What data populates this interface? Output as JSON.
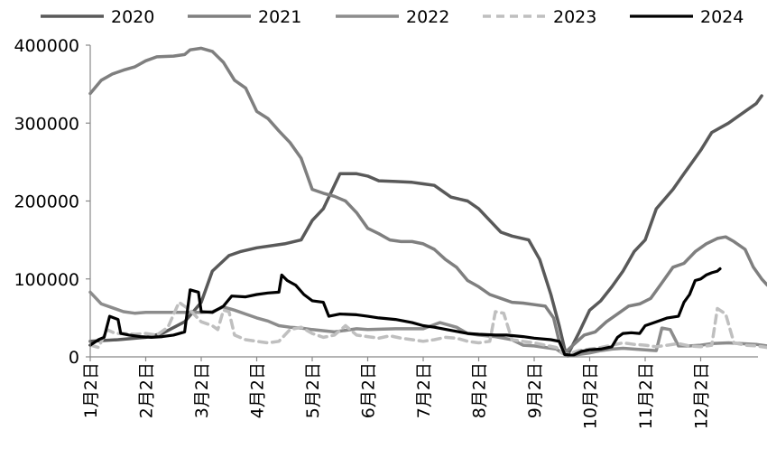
{
  "chart_data": {
    "type": "line",
    "title": "",
    "xlabel": "",
    "ylabel": "",
    "ylim": [
      0,
      400000
    ],
    "yticks": [
      "0",
      "100000",
      "200000",
      "300000",
      "400000"
    ],
    "x_ticks": [
      "1月2日",
      "2月2日",
      "3月2日",
      "4月2日",
      "5月2日",
      "6月2日",
      "7月2日",
      "8月2日",
      "9月2日",
      "10月2日",
      "11月2日",
      "12月2日"
    ],
    "x_range": [
      1,
      13.2
    ],
    "grid": false,
    "legend_position": "top",
    "series": [
      {
        "name": "2020",
        "color": "#595959",
        "dash": "solid",
        "points": [
          [
            1,
            20000
          ],
          [
            1.5,
            22000
          ],
          [
            2,
            25000
          ],
          [
            2.3,
            30000
          ],
          [
            2.7,
            45000
          ],
          [
            3,
            70000
          ],
          [
            3.2,
            110000
          ],
          [
            3.5,
            130000
          ],
          [
            3.7,
            135000
          ],
          [
            4,
            140000
          ],
          [
            4.5,
            145000
          ],
          [
            4.8,
            150000
          ],
          [
            5,
            175000
          ],
          [
            5.2,
            190000
          ],
          [
            5.4,
            220000
          ],
          [
            5.5,
            235000
          ],
          [
            5.8,
            235000
          ],
          [
            6,
            232000
          ],
          [
            6.2,
            226000
          ],
          [
            6.5,
            225000
          ],
          [
            6.8,
            224000
          ],
          [
            7,
            222000
          ],
          [
            7.2,
            220000
          ],
          [
            7.5,
            205000
          ],
          [
            7.8,
            200000
          ],
          [
            8,
            190000
          ],
          [
            8.2,
            175000
          ],
          [
            8.4,
            160000
          ],
          [
            8.6,
            155000
          ],
          [
            8.9,
            150000
          ],
          [
            9.1,
            125000
          ],
          [
            9.3,
            80000
          ],
          [
            9.45,
            40000
          ],
          [
            9.55,
            10000
          ],
          [
            9.6,
            2000
          ],
          [
            9.8,
            30000
          ],
          [
            10,
            60000
          ],
          [
            10.2,
            72000
          ],
          [
            10.4,
            90000
          ],
          [
            10.6,
            110000
          ],
          [
            10.8,
            135000
          ],
          [
            11,
            150000
          ],
          [
            11.2,
            190000
          ],
          [
            11.5,
            215000
          ],
          [
            11.7,
            235000
          ],
          [
            12,
            265000
          ],
          [
            12.2,
            288000
          ],
          [
            12.5,
            300000
          ],
          [
            12.8,
            315000
          ],
          [
            13,
            325000
          ],
          [
            13.1,
            335000
          ]
        ]
      },
      {
        "name": "2021",
        "color": "#7f7f7f",
        "dash": "solid",
        "points": [
          [
            1,
            338000
          ],
          [
            1.2,
            355000
          ],
          [
            1.4,
            363000
          ],
          [
            1.6,
            368000
          ],
          [
            1.8,
            372000
          ],
          [
            2,
            380000
          ],
          [
            2.2,
            385000
          ],
          [
            2.5,
            386000
          ],
          [
            2.7,
            388000
          ],
          [
            2.8,
            394000
          ],
          [
            3,
            396000
          ],
          [
            3.2,
            392000
          ],
          [
            3.4,
            378000
          ],
          [
            3.6,
            355000
          ],
          [
            3.8,
            345000
          ],
          [
            4,
            315000
          ],
          [
            4.2,
            306000
          ],
          [
            4.4,
            290000
          ],
          [
            4.6,
            275000
          ],
          [
            4.8,
            255000
          ],
          [
            5,
            215000
          ],
          [
            5.2,
            210000
          ],
          [
            5.4,
            206000
          ],
          [
            5.6,
            200000
          ],
          [
            5.8,
            185000
          ],
          [
            6,
            165000
          ],
          [
            6.2,
            158000
          ],
          [
            6.4,
            150000
          ],
          [
            6.6,
            148000
          ],
          [
            6.8,
            148000
          ],
          [
            7,
            145000
          ],
          [
            7.2,
            138000
          ],
          [
            7.4,
            125000
          ],
          [
            7.6,
            115000
          ],
          [
            7.8,
            98000
          ],
          [
            8,
            90000
          ],
          [
            8.2,
            80000
          ],
          [
            8.4,
            75000
          ],
          [
            8.6,
            70000
          ],
          [
            8.8,
            69000
          ],
          [
            9,
            67000
          ],
          [
            9.2,
            65000
          ],
          [
            9.35,
            50000
          ],
          [
            9.45,
            20000
          ],
          [
            9.55,
            5000
          ],
          [
            9.7,
            15000
          ],
          [
            9.9,
            28000
          ],
          [
            10.1,
            32000
          ],
          [
            10.3,
            45000
          ],
          [
            10.5,
            55000
          ],
          [
            10.7,
            65000
          ],
          [
            10.9,
            68000
          ],
          [
            11.1,
            75000
          ],
          [
            11.3,
            95000
          ],
          [
            11.5,
            115000
          ],
          [
            11.7,
            120000
          ],
          [
            11.9,
            135000
          ],
          [
            12.1,
            145000
          ],
          [
            12.3,
            152000
          ],
          [
            12.45,
            154000
          ],
          [
            12.6,
            148000
          ],
          [
            12.8,
            138000
          ],
          [
            12.95,
            115000
          ],
          [
            13.1,
            100000
          ],
          [
            13.2,
            92000
          ]
        ]
      },
      {
        "name": "2022",
        "color": "#8c8c8c",
        "dash": "solid",
        "points": [
          [
            1,
            83000
          ],
          [
            1.2,
            68000
          ],
          [
            1.4,
            63000
          ],
          [
            1.6,
            58000
          ],
          [
            1.8,
            56000
          ],
          [
            2,
            57000
          ],
          [
            2.5,
            57000
          ],
          [
            3,
            57000
          ],
          [
            3.2,
            58000
          ],
          [
            3.4,
            64000
          ],
          [
            3.6,
            60000
          ],
          [
            3.8,
            55000
          ],
          [
            4,
            50000
          ],
          [
            4.2,
            46000
          ],
          [
            4.4,
            40000
          ],
          [
            4.6,
            38000
          ],
          [
            4.8,
            37000
          ],
          [
            5,
            35000
          ],
          [
            5.4,
            32000
          ],
          [
            5.8,
            36000
          ],
          [
            6,
            35000
          ],
          [
            6.5,
            36000
          ],
          [
            7,
            36000
          ],
          [
            7.3,
            44000
          ],
          [
            7.6,
            38000
          ],
          [
            7.8,
            30000
          ],
          [
            8,
            28000
          ],
          [
            8.3,
            26000
          ],
          [
            8.6,
            22000
          ],
          [
            8.8,
            15000
          ],
          [
            9,
            14000
          ],
          [
            9.2,
            12000
          ],
          [
            9.4,
            10000
          ],
          [
            9.5,
            5000
          ],
          [
            9.6,
            1000
          ],
          [
            9.8,
            3000
          ],
          [
            10,
            5000
          ],
          [
            10.2,
            8000
          ],
          [
            10.4,
            10000
          ],
          [
            10.6,
            11000
          ],
          [
            10.8,
            10000
          ],
          [
            11,
            9000
          ],
          [
            11.2,
            8000
          ],
          [
            11.3,
            37000
          ],
          [
            11.45,
            35000
          ],
          [
            11.6,
            14000
          ],
          [
            11.8,
            14000
          ],
          [
            12,
            15000
          ],
          [
            12.2,
            17000
          ],
          [
            12.5,
            18000
          ],
          [
            13,
            16000
          ],
          [
            13.2,
            14000
          ]
        ]
      },
      {
        "name": "2023",
        "color": "#bfbfbf",
        "dash": "dashed",
        "points": [
          [
            1,
            15000
          ],
          [
            1.15,
            12000
          ],
          [
            1.3,
            35000
          ],
          [
            1.45,
            30000
          ],
          [
            1.6,
            30000
          ],
          [
            1.8,
            29000
          ],
          [
            2,
            30000
          ],
          [
            2.2,
            28000
          ],
          [
            2.4,
            38000
          ],
          [
            2.6,
            70000
          ],
          [
            2.8,
            60000
          ],
          [
            3,
            45000
          ],
          [
            3.2,
            40000
          ],
          [
            3.3,
            35000
          ],
          [
            3.4,
            60000
          ],
          [
            3.5,
            58000
          ],
          [
            3.6,
            28000
          ],
          [
            3.8,
            22000
          ],
          [
            4,
            20000
          ],
          [
            4.2,
            18000
          ],
          [
            4.4,
            20000
          ],
          [
            4.6,
            35000
          ],
          [
            4.8,
            38000
          ],
          [
            5,
            30000
          ],
          [
            5.2,
            25000
          ],
          [
            5.4,
            28000
          ],
          [
            5.6,
            40000
          ],
          [
            5.8,
            28000
          ],
          [
            6,
            26000
          ],
          [
            6.2,
            24000
          ],
          [
            6.4,
            27000
          ],
          [
            6.6,
            24000
          ],
          [
            6.8,
            22000
          ],
          [
            7,
            20000
          ],
          [
            7.2,
            22000
          ],
          [
            7.4,
            25000
          ],
          [
            7.6,
            24000
          ],
          [
            7.8,
            20000
          ],
          [
            8,
            18000
          ],
          [
            8.2,
            20000
          ],
          [
            8.3,
            58000
          ],
          [
            8.45,
            56000
          ],
          [
            8.6,
            22000
          ],
          [
            8.8,
            20000
          ],
          [
            9,
            18000
          ],
          [
            9.2,
            15000
          ],
          [
            9.4,
            12000
          ],
          [
            9.5,
            5000
          ],
          [
            9.6,
            3000
          ],
          [
            9.8,
            8000
          ],
          [
            10,
            10000
          ],
          [
            10.2,
            12000
          ],
          [
            10.4,
            15000
          ],
          [
            10.6,
            18000
          ],
          [
            10.8,
            16000
          ],
          [
            11,
            15000
          ],
          [
            11.2,
            13000
          ],
          [
            11.4,
            15000
          ],
          [
            11.6,
            17000
          ],
          [
            11.8,
            14000
          ],
          [
            12,
            13000
          ],
          [
            12.2,
            15000
          ],
          [
            12.3,
            62000
          ],
          [
            12.45,
            55000
          ],
          [
            12.6,
            18000
          ],
          [
            12.8,
            15000
          ],
          [
            13,
            14000
          ],
          [
            13.2,
            12000
          ]
        ]
      },
      {
        "name": "2024",
        "color": "#000000",
        "dash": "solid",
        "points": [
          [
            1,
            15000
          ],
          [
            1.15,
            22000
          ],
          [
            1.25,
            25000
          ],
          [
            1.35,
            52000
          ],
          [
            1.5,
            48000
          ],
          [
            1.55,
            30000
          ],
          [
            1.7,
            28000
          ],
          [
            1.9,
            26000
          ],
          [
            2.1,
            25000
          ],
          [
            2.3,
            26000
          ],
          [
            2.5,
            28000
          ],
          [
            2.7,
            32000
          ],
          [
            2.8,
            86000
          ],
          [
            2.95,
            83000
          ],
          [
            3,
            58000
          ],
          [
            3.2,
            57000
          ],
          [
            3.4,
            65000
          ],
          [
            3.55,
            78000
          ],
          [
            3.8,
            77000
          ],
          [
            4,
            80000
          ],
          [
            4.2,
            82000
          ],
          [
            4.4,
            83000
          ],
          [
            4.45,
            105000
          ],
          [
            4.55,
            98000
          ],
          [
            4.7,
            92000
          ],
          [
            4.85,
            80000
          ],
          [
            5,
            72000
          ],
          [
            5.2,
            70000
          ],
          [
            5.3,
            52000
          ],
          [
            5.5,
            55000
          ],
          [
            5.8,
            54000
          ],
          [
            6,
            52000
          ],
          [
            6.2,
            50000
          ],
          [
            6.5,
            48000
          ],
          [
            6.8,
            44000
          ],
          [
            7,
            40000
          ],
          [
            7.2,
            38000
          ],
          [
            7.5,
            34000
          ],
          [
            7.8,
            30000
          ],
          [
            8,
            29000
          ],
          [
            8.3,
            28000
          ],
          [
            8.5,
            28000
          ],
          [
            8.8,
            26000
          ],
          [
            9,
            24000
          ],
          [
            9.3,
            22000
          ],
          [
            9.45,
            20000
          ],
          [
            9.55,
            3000
          ],
          [
            9.7,
            2000
          ],
          [
            9.85,
            7000
          ],
          [
            10,
            9000
          ],
          [
            10.2,
            10000
          ],
          [
            10.4,
            13000
          ],
          [
            10.5,
            25000
          ],
          [
            10.6,
            30000
          ],
          [
            10.75,
            31000
          ],
          [
            10.9,
            30000
          ],
          [
            11,
            40000
          ],
          [
            11.2,
            45000
          ],
          [
            11.4,
            50000
          ],
          [
            11.6,
            52000
          ],
          [
            11.7,
            70000
          ],
          [
            11.8,
            80000
          ],
          [
            11.9,
            98000
          ],
          [
            12,
            100000
          ],
          [
            12.1,
            105000
          ],
          [
            12.2,
            108000
          ],
          [
            12.3,
            110000
          ],
          [
            12.35,
            113000
          ]
        ]
      }
    ]
  }
}
